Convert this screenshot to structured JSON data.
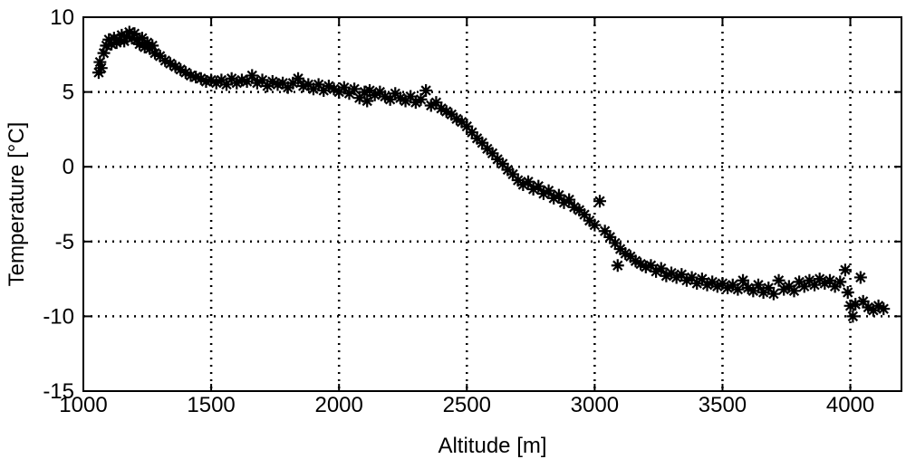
{
  "chart_data": {
    "type": "scatter",
    "title": "",
    "xlabel": "Altitude [m]",
    "ylabel": "Temperature [°C]",
    "xlim": [
      1000,
      4200
    ],
    "ylim": [
      -15,
      10
    ],
    "xticks": [
      1000,
      1500,
      2000,
      2500,
      3000,
      3500,
      4000
    ],
    "yticks": [
      -15,
      -10,
      -5,
      0,
      5,
      10
    ],
    "grid": true,
    "marker": "asterisk",
    "color": "#000000",
    "series": [
      {
        "values": [
          {
            "x": 1060,
            "y": 6.3
          },
          {
            "x": 1065,
            "y": 7.0
          },
          {
            "x": 1070,
            "y": 6.6
          },
          {
            "x": 1080,
            "y": 7.6
          },
          {
            "x": 1090,
            "y": 8.1
          },
          {
            "x": 1100,
            "y": 8.5
          },
          {
            "x": 1110,
            "y": 8.2
          },
          {
            "x": 1120,
            "y": 8.6
          },
          {
            "x": 1130,
            "y": 8.3
          },
          {
            "x": 1140,
            "y": 8.5
          },
          {
            "x": 1150,
            "y": 8.8
          },
          {
            "x": 1160,
            "y": 8.4
          },
          {
            "x": 1170,
            "y": 8.7
          },
          {
            "x": 1180,
            "y": 9.0
          },
          {
            "x": 1190,
            "y": 8.6
          },
          {
            "x": 1200,
            "y": 8.9
          },
          {
            "x": 1210,
            "y": 8.5
          },
          {
            "x": 1220,
            "y": 8.2
          },
          {
            "x": 1230,
            "y": 8.6
          },
          {
            "x": 1240,
            "y": 8.0
          },
          {
            "x": 1250,
            "y": 8.3
          },
          {
            "x": 1260,
            "y": 7.9
          },
          {
            "x": 1270,
            "y": 8.1
          },
          {
            "x": 1280,
            "y": 7.6
          },
          {
            "x": 1300,
            "y": 7.4
          },
          {
            "x": 1320,
            "y": 7.1
          },
          {
            "x": 1340,
            "y": 6.9
          },
          {
            "x": 1360,
            "y": 6.7
          },
          {
            "x": 1380,
            "y": 6.5
          },
          {
            "x": 1400,
            "y": 6.3
          },
          {
            "x": 1420,
            "y": 6.1
          },
          {
            "x": 1440,
            "y": 6.0
          },
          {
            "x": 1460,
            "y": 5.9
          },
          {
            "x": 1480,
            "y": 5.7
          },
          {
            "x": 1500,
            "y": 5.8
          },
          {
            "x": 1520,
            "y": 5.6
          },
          {
            "x": 1540,
            "y": 5.8
          },
          {
            "x": 1560,
            "y": 5.5
          },
          {
            "x": 1580,
            "y": 5.9
          },
          {
            "x": 1600,
            "y": 5.6
          },
          {
            "x": 1620,
            "y": 5.8
          },
          {
            "x": 1640,
            "y": 5.7
          },
          {
            "x": 1660,
            "y": 6.1
          },
          {
            "x": 1680,
            "y": 5.6
          },
          {
            "x": 1700,
            "y": 5.8
          },
          {
            "x": 1720,
            "y": 5.4
          },
          {
            "x": 1740,
            "y": 5.7
          },
          {
            "x": 1760,
            "y": 5.5
          },
          {
            "x": 1780,
            "y": 5.6
          },
          {
            "x": 1800,
            "y": 5.3
          },
          {
            "x": 1820,
            "y": 5.6
          },
          {
            "x": 1840,
            "y": 5.9
          },
          {
            "x": 1860,
            "y": 5.4
          },
          {
            "x": 1880,
            "y": 5.5
          },
          {
            "x": 1900,
            "y": 5.2
          },
          {
            "x": 1920,
            "y": 5.5
          },
          {
            "x": 1940,
            "y": 5.1
          },
          {
            "x": 1960,
            "y": 5.4
          },
          {
            "x": 1980,
            "y": 5.2
          },
          {
            "x": 2000,
            "y": 5.0
          },
          {
            "x": 2020,
            "y": 5.3
          },
          {
            "x": 2040,
            "y": 4.9
          },
          {
            "x": 2060,
            "y": 5.2
          },
          {
            "x": 2080,
            "y": 4.6
          },
          {
            "x": 2100,
            "y": 5.0
          },
          {
            "x": 2110,
            "y": 4.4
          },
          {
            "x": 2120,
            "y": 5.1
          },
          {
            "x": 2140,
            "y": 4.8
          },
          {
            "x": 2160,
            "y": 5.0
          },
          {
            "x": 2180,
            "y": 4.7
          },
          {
            "x": 2200,
            "y": 4.5
          },
          {
            "x": 2220,
            "y": 4.9
          },
          {
            "x": 2240,
            "y": 4.6
          },
          {
            "x": 2260,
            "y": 4.4
          },
          {
            "x": 2280,
            "y": 4.7
          },
          {
            "x": 2300,
            "y": 4.3
          },
          {
            "x": 2320,
            "y": 4.5
          },
          {
            "x": 2340,
            "y": 5.1
          },
          {
            "x": 2360,
            "y": 4.1
          },
          {
            "x": 2380,
            "y": 4.3
          },
          {
            "x": 2400,
            "y": 3.9
          },
          {
            "x": 2420,
            "y": 3.7
          },
          {
            "x": 2440,
            "y": 3.5
          },
          {
            "x": 2460,
            "y": 3.2
          },
          {
            "x": 2480,
            "y": 3.0
          },
          {
            "x": 2500,
            "y": 2.7
          },
          {
            "x": 2520,
            "y": 2.3
          },
          {
            "x": 2540,
            "y": 1.9
          },
          {
            "x": 2560,
            "y": 1.6
          },
          {
            "x": 2580,
            "y": 1.2
          },
          {
            "x": 2600,
            "y": 0.9
          },
          {
            "x": 2620,
            "y": 0.5
          },
          {
            "x": 2640,
            "y": 0.2
          },
          {
            "x": 2660,
            "y": -0.2
          },
          {
            "x": 2680,
            "y": -0.5
          },
          {
            "x": 2700,
            "y": -0.9
          },
          {
            "x": 2720,
            "y": -1.2
          },
          {
            "x": 2740,
            "y": -1.0
          },
          {
            "x": 2760,
            "y": -1.5
          },
          {
            "x": 2780,
            "y": -1.3
          },
          {
            "x": 2800,
            "y": -1.8
          },
          {
            "x": 2820,
            "y": -1.6
          },
          {
            "x": 2840,
            "y": -2.1
          },
          {
            "x": 2860,
            "y": -1.9
          },
          {
            "x": 2880,
            "y": -2.4
          },
          {
            "x": 2900,
            "y": -2.2
          },
          {
            "x": 2920,
            "y": -2.7
          },
          {
            "x": 2940,
            "y": -2.9
          },
          {
            "x": 2960,
            "y": -3.2
          },
          {
            "x": 2980,
            "y": -3.6
          },
          {
            "x": 3000,
            "y": -3.9
          },
          {
            "x": 3020,
            "y": -2.3
          },
          {
            "x": 3040,
            "y": -4.3
          },
          {
            "x": 3060,
            "y": -4.7
          },
          {
            "x": 3080,
            "y": -5.1
          },
          {
            "x": 3090,
            "y": -6.6
          },
          {
            "x": 3100,
            "y": -5.5
          },
          {
            "x": 3120,
            "y": -5.8
          },
          {
            "x": 3140,
            "y": -6.0
          },
          {
            "x": 3160,
            "y": -6.3
          },
          {
            "x": 3180,
            "y": -6.5
          },
          {
            "x": 3200,
            "y": -6.7
          },
          {
            "x": 3220,
            "y": -6.6
          },
          {
            "x": 3240,
            "y": -7.0
          },
          {
            "x": 3260,
            "y": -6.8
          },
          {
            "x": 3280,
            "y": -7.3
          },
          {
            "x": 3300,
            "y": -7.1
          },
          {
            "x": 3320,
            "y": -7.4
          },
          {
            "x": 3340,
            "y": -7.2
          },
          {
            "x": 3360,
            "y": -7.6
          },
          {
            "x": 3380,
            "y": -7.4
          },
          {
            "x": 3400,
            "y": -7.8
          },
          {
            "x": 3420,
            "y": -7.5
          },
          {
            "x": 3440,
            "y": -7.9
          },
          {
            "x": 3460,
            "y": -7.7
          },
          {
            "x": 3480,
            "y": -8.0
          },
          {
            "x": 3500,
            "y": -7.8
          },
          {
            "x": 3520,
            "y": -8.1
          },
          {
            "x": 3540,
            "y": -7.9
          },
          {
            "x": 3560,
            "y": -8.2
          },
          {
            "x": 3580,
            "y": -7.6
          },
          {
            "x": 3600,
            "y": -8.1
          },
          {
            "x": 3620,
            "y": -8.3
          },
          {
            "x": 3640,
            "y": -7.9
          },
          {
            "x": 3660,
            "y": -8.4
          },
          {
            "x": 3680,
            "y": -8.1
          },
          {
            "x": 3700,
            "y": -8.5
          },
          {
            "x": 3720,
            "y": -7.6
          },
          {
            "x": 3740,
            "y": -8.2
          },
          {
            "x": 3760,
            "y": -8.0
          },
          {
            "x": 3780,
            "y": -8.3
          },
          {
            "x": 3800,
            "y": -7.7
          },
          {
            "x": 3820,
            "y": -8.0
          },
          {
            "x": 3840,
            "y": -7.6
          },
          {
            "x": 3860,
            "y": -7.9
          },
          {
            "x": 3880,
            "y": -7.5
          },
          {
            "x": 3900,
            "y": -7.8
          },
          {
            "x": 3920,
            "y": -7.6
          },
          {
            "x": 3940,
            "y": -8.0
          },
          {
            "x": 3960,
            "y": -7.7
          },
          {
            "x": 3980,
            "y": -6.9
          },
          {
            "x": 3990,
            "y": -8.4
          },
          {
            "x": 4000,
            "y": -9.3
          },
          {
            "x": 4010,
            "y": -10.0
          },
          {
            "x": 4020,
            "y": -9.2
          },
          {
            "x": 4040,
            "y": -7.4
          },
          {
            "x": 4050,
            "y": -9.0
          },
          {
            "x": 4070,
            "y": -9.4
          },
          {
            "x": 4090,
            "y": -9.6
          },
          {
            "x": 4110,
            "y": -9.3
          },
          {
            "x": 4130,
            "y": -9.5
          }
        ]
      }
    ]
  }
}
